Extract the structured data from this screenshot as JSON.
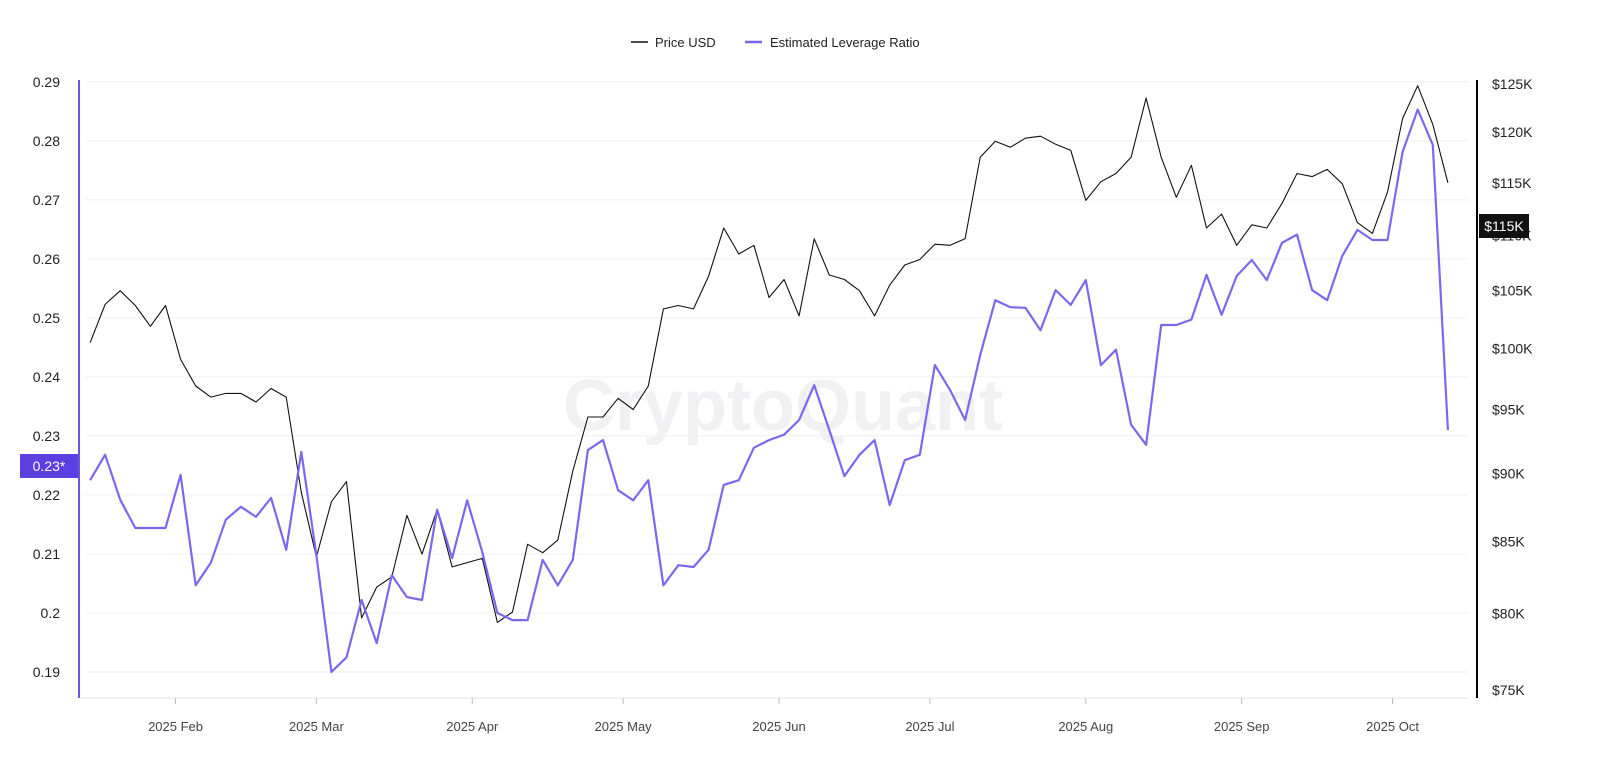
{
  "legend": {
    "price_label": "Price USD",
    "leverage_label": "Estimated Leverage Ratio"
  },
  "watermark": "CryptoQuant",
  "colors": {
    "price": "#111111",
    "leverage": "#7b68ee",
    "left_axis": "#6a55e0",
    "right_axis": "#000000",
    "grid": "#eeeeee"
  },
  "chart_data": {
    "type": "line",
    "title": "",
    "xlabel": "",
    "grid": true,
    "legend_position": "top-center",
    "x_ticks": [
      "2025 Feb",
      "2025 Mar",
      "2025 Apr",
      "2025 May",
      "2025 Jun",
      "2025 Jul",
      "2025 Aug",
      "2025 Sep",
      "2025 Oct"
    ],
    "y_left": {
      "ylabel": "",
      "scale": "linear",
      "ylim": [
        0.1856,
        0.2903
      ],
      "ticks": [
        "0.29",
        "0.28",
        "0.27",
        "0.26",
        "0.25",
        "0.24",
        "0.23",
        "0.22",
        "0.21",
        "0.2",
        "0.19"
      ],
      "current_value_label": "0.23*"
    },
    "y_right": {
      "ylabel": "",
      "scale": "log",
      "ylim": [
        74.5,
        125.4
      ],
      "unit": "USD thousands",
      "ticks": [
        "$125K",
        "$120K",
        "$115K",
        "$110K",
        "$105K",
        "$100K",
        "$95K",
        "$90K",
        "$85K",
        "$80K",
        "$75K"
      ],
      "current_value_label": "$115K"
    },
    "x": [
      "2025-01-15",
      "2025-01-18",
      "2025-01-21",
      "2025-01-24",
      "2025-01-27",
      "2025-01-30",
      "2025-02-02",
      "2025-02-05",
      "2025-02-08",
      "2025-02-11",
      "2025-02-14",
      "2025-02-17",
      "2025-02-20",
      "2025-02-23",
      "2025-02-26",
      "2025-03-01",
      "2025-03-04",
      "2025-03-07",
      "2025-03-10",
      "2025-03-13",
      "2025-03-16",
      "2025-03-19",
      "2025-03-22",
      "2025-03-25",
      "2025-03-28",
      "2025-03-31",
      "2025-04-03",
      "2025-04-06",
      "2025-04-09",
      "2025-04-12",
      "2025-04-15",
      "2025-04-18",
      "2025-04-21",
      "2025-04-24",
      "2025-04-27",
      "2025-04-30",
      "2025-05-03",
      "2025-05-06",
      "2025-05-09",
      "2025-05-12",
      "2025-05-15",
      "2025-05-18",
      "2025-05-21",
      "2025-05-24",
      "2025-05-27",
      "2025-05-30",
      "2025-06-02",
      "2025-06-05",
      "2025-06-08",
      "2025-06-11",
      "2025-06-14",
      "2025-06-17",
      "2025-06-20",
      "2025-06-23",
      "2025-06-26",
      "2025-06-29",
      "2025-07-02",
      "2025-07-05",
      "2025-07-08",
      "2025-07-11",
      "2025-07-14",
      "2025-07-17",
      "2025-07-20",
      "2025-07-23",
      "2025-07-26",
      "2025-07-29",
      "2025-08-01",
      "2025-08-04",
      "2025-08-07",
      "2025-08-10",
      "2025-08-13",
      "2025-08-16",
      "2025-08-19",
      "2025-08-22",
      "2025-08-25",
      "2025-08-28",
      "2025-08-31",
      "2025-09-03",
      "2025-09-06",
      "2025-09-09",
      "2025-09-12",
      "2025-09-15",
      "2025-09-18",
      "2025-09-21",
      "2025-09-24",
      "2025-09-27",
      "2025-09-30",
      "2025-10-03",
      "2025-10-06",
      "2025-10-09",
      "2025-10-12"
    ],
    "series": [
      {
        "name": "Price USD",
        "axis": "right",
        "values": [
          100.5,
          103.8,
          105.0,
          103.7,
          101.9,
          103.7,
          99.1,
          96.9,
          96.0,
          96.3,
          96.3,
          95.6,
          96.7,
          96.0,
          88.6,
          83.9,
          87.9,
          89.4,
          79.7,
          81.8,
          82.5,
          86.9,
          84.1,
          87.3,
          83.2,
          83.5,
          83.8,
          79.4,
          80.1,
          84.8,
          84.2,
          85.1,
          90.2,
          94.4,
          94.4,
          95.9,
          95.0,
          96.9,
          103.4,
          103.7,
          103.4,
          106.3,
          110.7,
          108.3,
          109.1,
          104.4,
          106.0,
          102.8,
          109.7,
          106.4,
          106.0,
          105.0,
          102.8,
          105.5,
          107.3,
          107.8,
          109.2,
          109.1,
          109.7,
          117.5,
          119.1,
          118.5,
          119.4,
          119.6,
          118.8,
          118.2,
          113.3,
          115.1,
          115.9,
          117.5,
          123.5,
          117.5,
          113.6,
          116.7,
          110.7,
          112.0,
          109.1,
          111.0,
          110.7,
          113.0,
          115.9,
          115.6,
          116.3,
          114.9,
          111.2,
          110.2,
          114.1,
          121.4,
          124.8,
          120.8,
          115.0
        ]
      },
      {
        "name": "Estimated Leverage Ratio",
        "axis": "left",
        "values": [
          0.2225,
          0.2268,
          0.2192,
          0.2144,
          0.2144,
          0.2144,
          0.2234,
          0.2047,
          0.2085,
          0.2158,
          0.218,
          0.2163,
          0.2195,
          0.2107,
          0.2273,
          0.2098,
          0.19,
          0.1925,
          0.2022,
          0.1949,
          0.2064,
          0.2027,
          0.2022,
          0.2175,
          0.2093,
          0.2191,
          0.2103,
          0.2,
          0.1988,
          0.1988,
          0.209,
          0.2047,
          0.209,
          0.2276,
          0.2293,
          0.2208,
          0.2191,
          0.2225,
          0.2047,
          0.2081,
          0.2078,
          0.2107,
          0.2217,
          0.2225,
          0.228,
          0.2293,
          0.2302,
          0.2327,
          0.2386,
          0.231,
          0.2232,
          0.2268,
          0.2293,
          0.2183,
          0.2259,
          0.2268,
          0.242,
          0.2378,
          0.2327,
          0.2437,
          0.253,
          0.2518,
          0.2517,
          0.2479,
          0.2547,
          0.2522,
          0.2564,
          0.242,
          0.2446,
          0.2319,
          0.2285,
          0.2488,
          0.2488,
          0.2497,
          0.2573,
          0.2505,
          0.2571,
          0.2598,
          0.2564,
          0.2627,
          0.2641,
          0.2547,
          0.253,
          0.2605,
          0.2649,
          0.2632,
          0.2632,
          0.2781,
          0.2853,
          0.2793,
          0.231
        ]
      }
    ]
  }
}
